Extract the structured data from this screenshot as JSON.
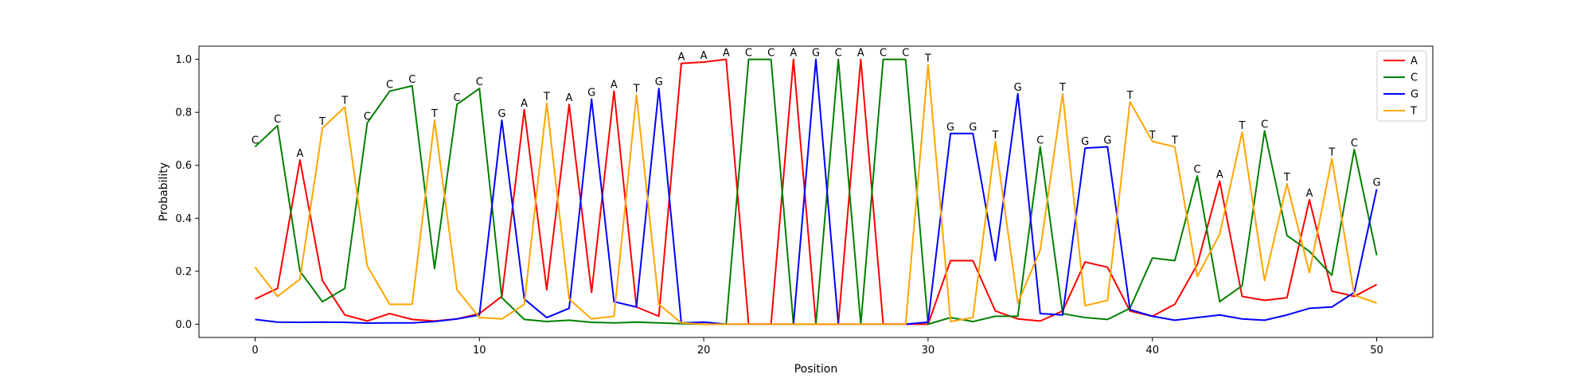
{
  "chart_data": {
    "type": "line",
    "title": "",
    "xlabel": "Position",
    "ylabel": "Probability",
    "xlim": [
      -2.5,
      52.5
    ],
    "ylim": [
      -0.05,
      1.05
    ],
    "xticks": [
      0,
      10,
      20,
      30,
      40,
      50
    ],
    "yticks": [
      0.0,
      0.2,
      0.4,
      0.6,
      0.8,
      1.0
    ],
    "grid": false,
    "legend_position": "top-right",
    "x": [
      0,
      1,
      2,
      3,
      4,
      5,
      6,
      7,
      8,
      9,
      10,
      11,
      12,
      13,
      14,
      15,
      16,
      17,
      18,
      19,
      20,
      21,
      22,
      23,
      24,
      25,
      26,
      27,
      28,
      29,
      30,
      31,
      32,
      33,
      34,
      35,
      36,
      37,
      38,
      39,
      40,
      41,
      42,
      43,
      44,
      45,
      46,
      47,
      48,
      49,
      50
    ],
    "series": [
      {
        "name": "A",
        "color": "#ff0000",
        "values": [
          0.095,
          0.135,
          0.62,
          0.165,
          0.035,
          0.012,
          0.04,
          0.018,
          0.012,
          0.02,
          0.04,
          0.105,
          0.81,
          0.13,
          0.83,
          0.12,
          0.88,
          0.065,
          0.03,
          0.985,
          0.99,
          1.0,
          0.0,
          0.0,
          1.0,
          0.0,
          0.0,
          1.0,
          0.0,
          0.0,
          0.0,
          0.24,
          0.24,
          0.05,
          0.02,
          0.012,
          0.05,
          0.235,
          0.215,
          0.05,
          0.03,
          0.075,
          0.225,
          0.54,
          0.105,
          0.09,
          0.1,
          0.47,
          0.125,
          0.105,
          0.15
        ]
      },
      {
        "name": "C",
        "color": "#008000",
        "values": [
          0.67,
          0.75,
          0.2,
          0.085,
          0.135,
          0.76,
          0.88,
          0.9,
          0.21,
          0.83,
          0.89,
          0.1,
          0.018,
          0.01,
          0.015,
          0.007,
          0.005,
          0.008,
          0.005,
          0.002,
          0.0,
          0.0,
          1.0,
          1.0,
          0.0,
          0.0,
          1.0,
          0.0,
          1.0,
          1.0,
          0.0,
          0.025,
          0.01,
          0.03,
          0.03,
          0.67,
          0.04,
          0.025,
          0.018,
          0.06,
          0.25,
          0.24,
          0.56,
          0.085,
          0.145,
          0.73,
          0.335,
          0.275,
          0.185,
          0.66,
          0.26
        ]
      },
      {
        "name": "G",
        "color": "#0000ff",
        "values": [
          0.018,
          0.008,
          0.007,
          0.008,
          0.007,
          0.004,
          0.005,
          0.005,
          0.01,
          0.02,
          0.035,
          0.77,
          0.095,
          0.025,
          0.06,
          0.85,
          0.085,
          0.065,
          0.89,
          0.005,
          0.008,
          0.0,
          0.0,
          0.0,
          0.0,
          1.0,
          0.0,
          0.0,
          0.0,
          0.0,
          0.008,
          0.72,
          0.72,
          0.24,
          0.87,
          0.04,
          0.035,
          0.665,
          0.67,
          0.055,
          0.03,
          0.015,
          0.025,
          0.035,
          0.02,
          0.015,
          0.035,
          0.06,
          0.065,
          0.12,
          0.51
        ]
      },
      {
        "name": "T",
        "color": "#ffa500",
        "values": [
          0.215,
          0.105,
          0.17,
          0.74,
          0.82,
          0.22,
          0.075,
          0.075,
          0.77,
          0.13,
          0.025,
          0.02,
          0.075,
          0.835,
          0.095,
          0.02,
          0.03,
          0.865,
          0.075,
          0.005,
          0.0,
          0.0,
          0.0,
          0.0,
          0.0,
          0.0,
          0.0,
          0.0,
          0.0,
          0.0,
          0.98,
          0.01,
          0.025,
          0.69,
          0.08,
          0.28,
          0.87,
          0.07,
          0.09,
          0.84,
          0.69,
          0.67,
          0.18,
          0.34,
          0.725,
          0.165,
          0.53,
          0.195,
          0.625,
          0.11,
          0.08
        ]
      }
    ],
    "annotations": [
      "C",
      "C",
      "A",
      "T",
      "T",
      "C",
      "C",
      "C",
      "T",
      "C",
      "C",
      "G",
      "A",
      "T",
      "A",
      "G",
      "A",
      "T",
      "G",
      "A",
      "A",
      "A",
      "C",
      "C",
      "A",
      "G",
      "C",
      "A",
      "C",
      "C",
      "T",
      "G",
      "G",
      "T",
      "G",
      "C",
      "T",
      "G",
      "G",
      "T",
      "T",
      "T",
      "C",
      "A",
      "T",
      "C",
      "T",
      "A",
      "T",
      "C",
      "G"
    ]
  }
}
